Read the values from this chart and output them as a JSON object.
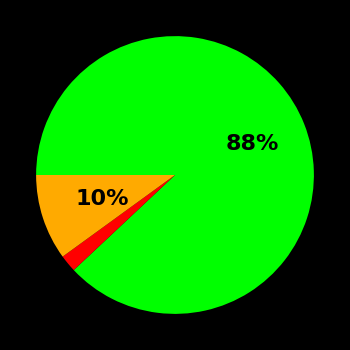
{
  "slices": [
    88,
    2,
    10
  ],
  "colors": [
    "#00ff00",
    "#ff0000",
    "#ffaa00"
  ],
  "labels": [
    "88%",
    "",
    "10%"
  ],
  "background_color": "#000000",
  "text_color": "#000000",
  "startangle": 180,
  "counterclock": false,
  "figsize": [
    3.5,
    3.5
  ],
  "dpi": 100,
  "label_fontsize": 16,
  "label_fontweight": "bold",
  "label_radii": [
    0.6,
    0.0,
    0.55
  ]
}
